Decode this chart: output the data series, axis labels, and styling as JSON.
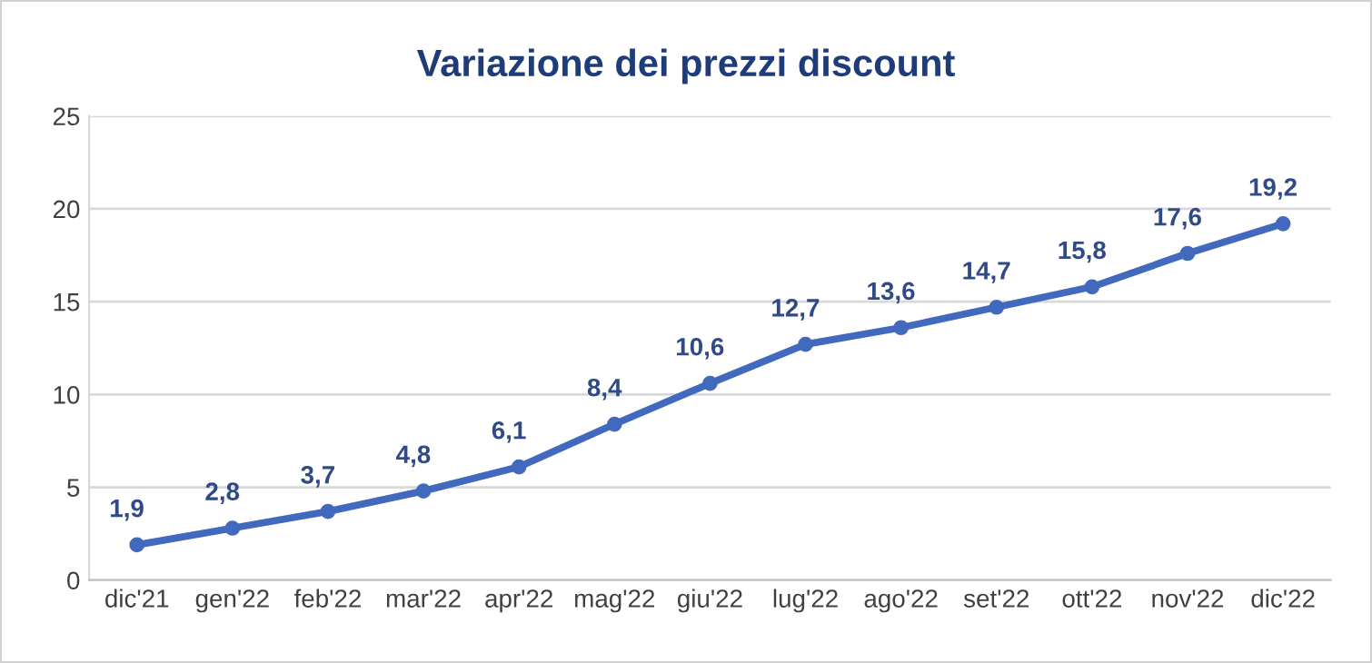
{
  "chart_data": {
    "type": "line",
    "title": "Variazione dei prezzi discount",
    "categories": [
      "dic'21",
      "gen'22",
      "feb'22",
      "mar'22",
      "apr'22",
      "mag'22",
      "giu'22",
      "lug'22",
      "ago'22",
      "set'22",
      "ott'22",
      "nov'22",
      "dic'22"
    ],
    "series": [
      {
        "color": "#4169bd",
        "values": [
          1.9,
          2.8,
          3.7,
          4.8,
          6.1,
          8.4,
          10.6,
          12.7,
          13.6,
          14.7,
          15.8,
          17.6,
          19.2
        ],
        "value_labels": [
          "1,9",
          "2,8",
          "3,7",
          "4,8",
          "6,1",
          "8,4",
          "10,6",
          "12,7",
          "13,6",
          "14,7",
          "15,8",
          "17,6",
          "19,2"
        ]
      }
    ],
    "ylim": [
      0,
      25
    ],
    "yticks": [
      0,
      5,
      10,
      15,
      20,
      25
    ],
    "grid": "y",
    "marker": "circle",
    "line_style": "solid"
  }
}
